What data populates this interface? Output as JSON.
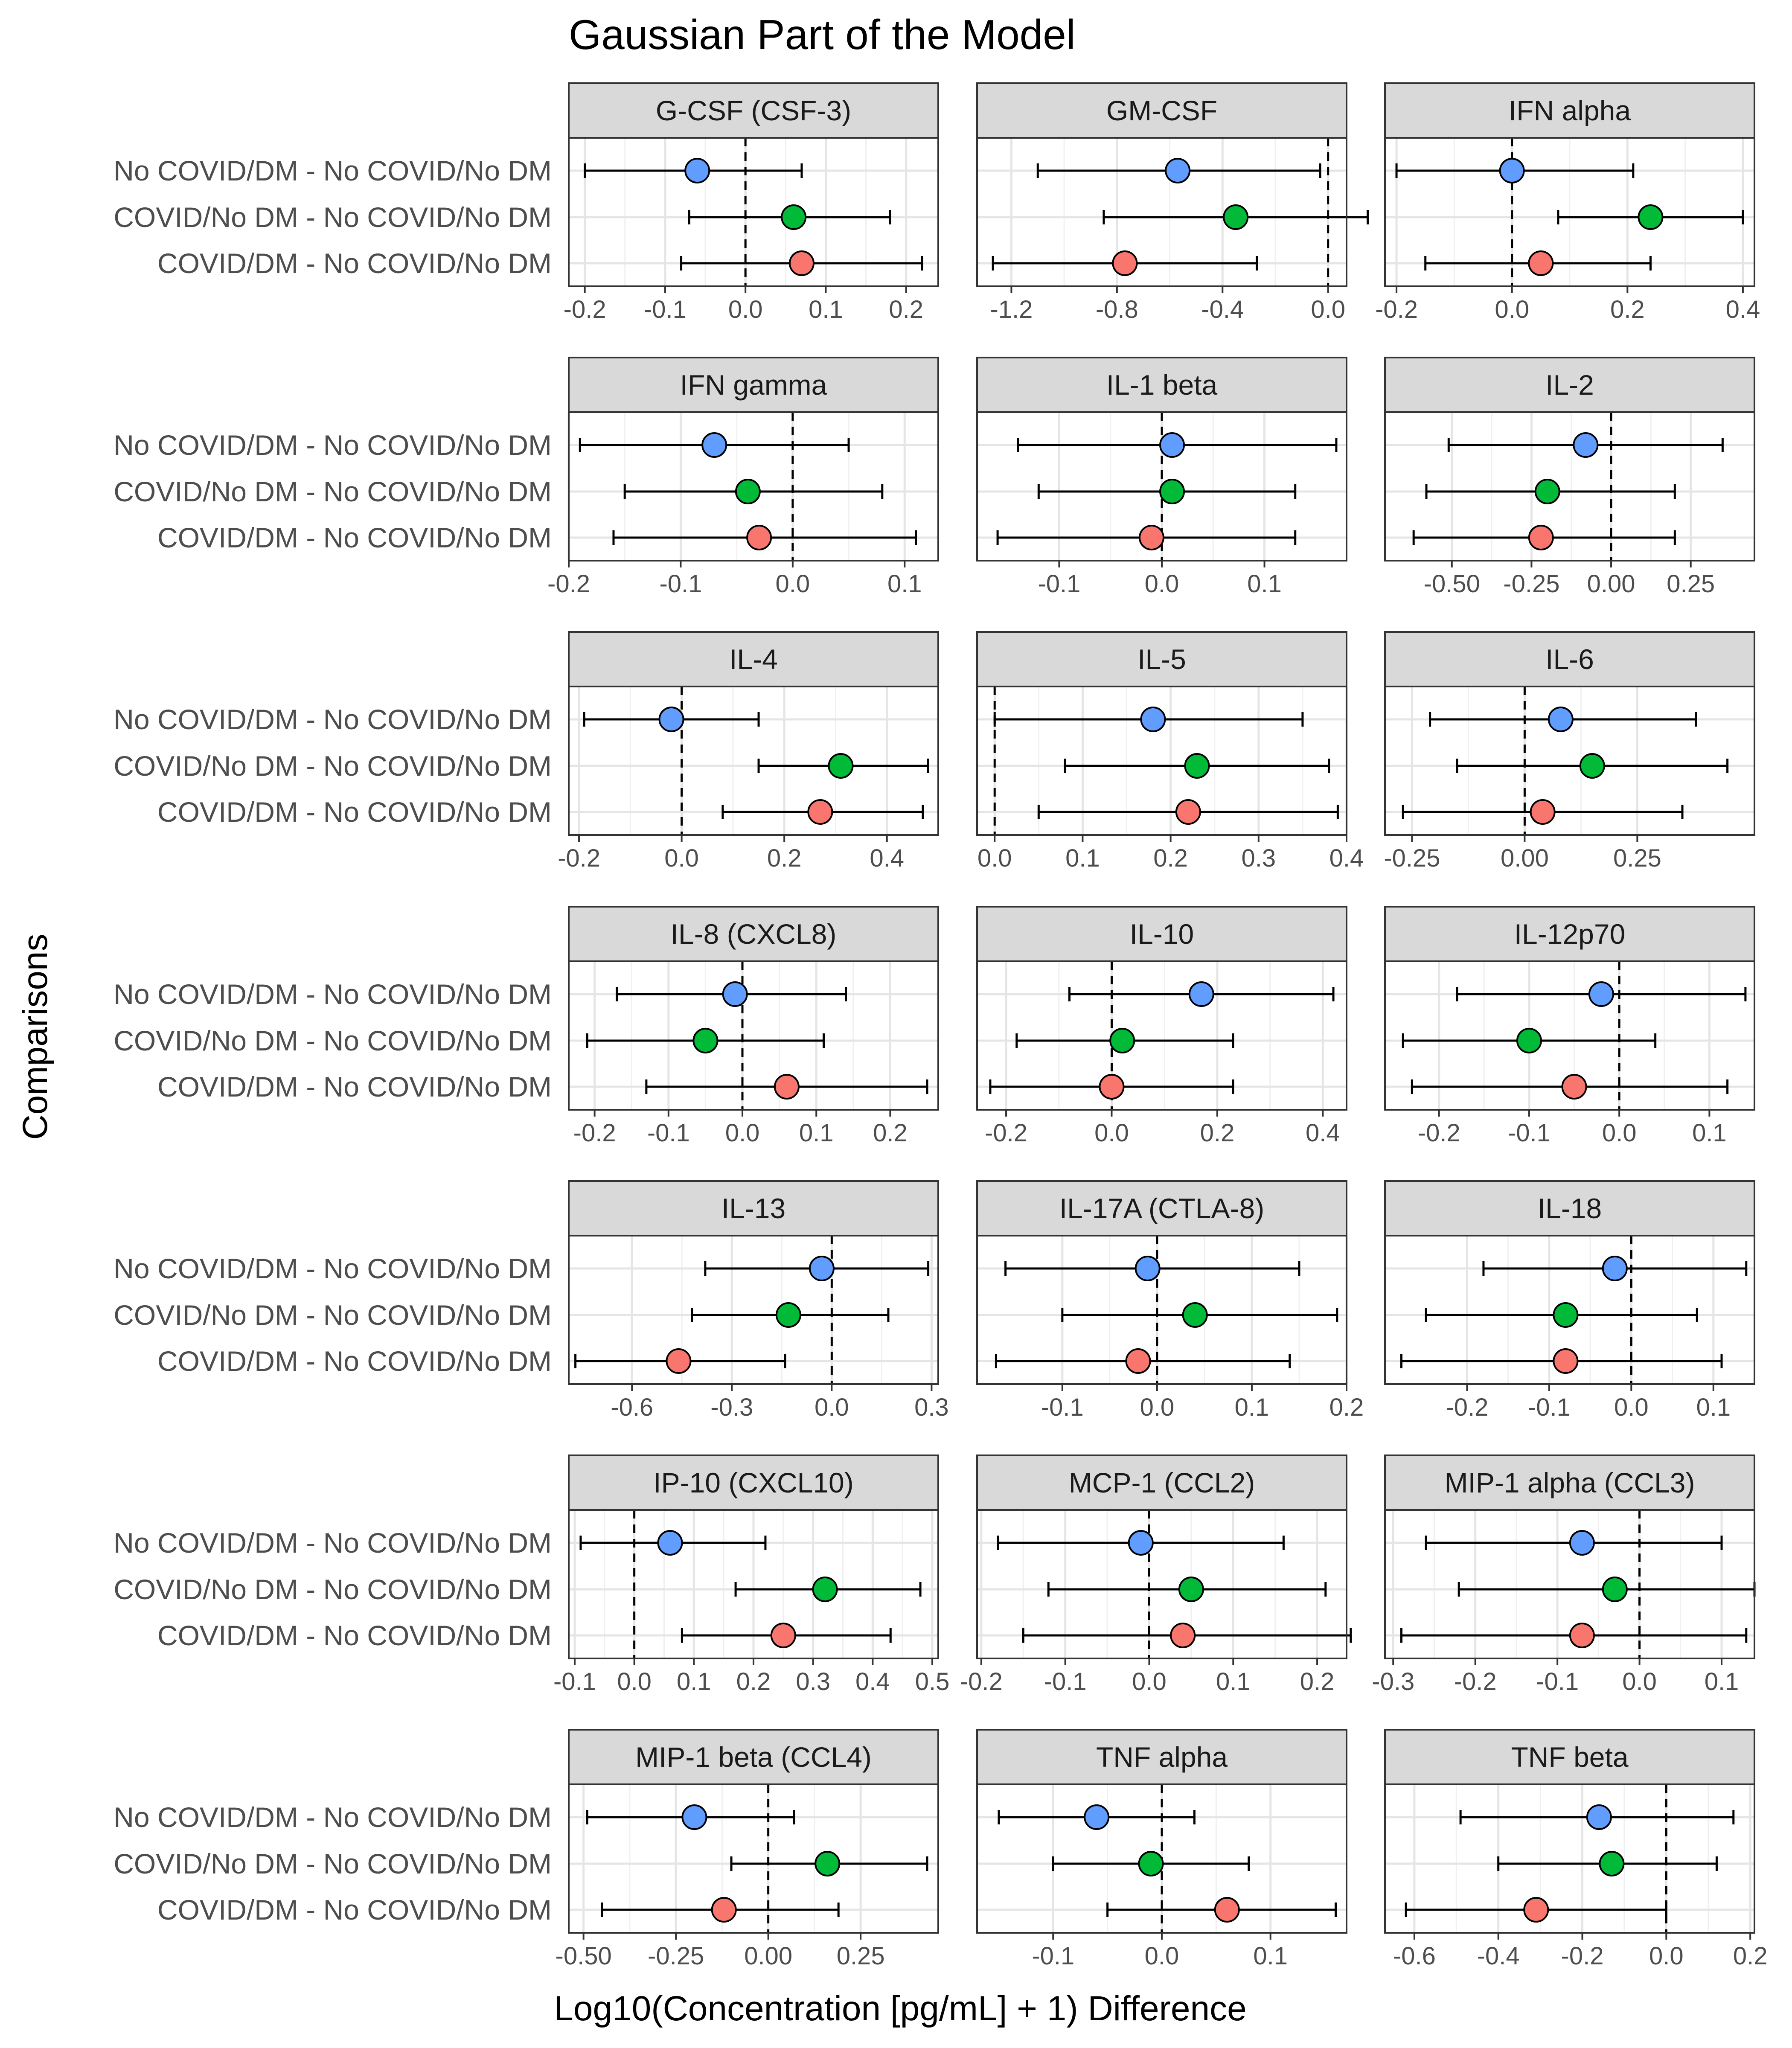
{
  "chart_data": {
    "type": "scatter",
    "subtype": "forest-plot-faceted",
    "title": "Gaussian Part of the Model",
    "xlabel": "Log10(Concentration [pg/mL] + 1) Difference",
    "ylabel": "Comparisons",
    "facet_grid": {
      "rows": 7,
      "cols": 3
    },
    "grid": true,
    "reference_line": {
      "x": 0,
      "style": "dashed"
    },
    "comparisons": [
      "No COVID/DM - No COVID/No DM",
      "COVID/No DM - No COVID/No DM",
      "COVID/DM - No COVID/No DM"
    ],
    "series_colors": [
      "#619CFF",
      "#00BA38",
      "#F8766D"
    ],
    "panels": [
      {
        "name": "G-CSF (CSF-3)",
        "xlim": [
          -0.22,
          0.24
        ],
        "ticks": [
          -0.2,
          -0.1,
          0.0,
          0.1,
          0.2
        ],
        "tick_labels": [
          "-0.2",
          "-0.1",
          "0.0",
          "0.1",
          "0.2"
        ],
        "estimates": [
          -0.06,
          0.06,
          0.07
        ],
        "lower": [
          -0.2,
          -0.07,
          -0.08
        ],
        "upper": [
          0.07,
          0.18,
          0.22
        ]
      },
      {
        "name": "GM-CSF",
        "xlim": [
          -1.33,
          0.07
        ],
        "ticks": [
          -1.2,
          -0.8,
          -0.4,
          0.0
        ],
        "tick_labels": [
          "-1.2",
          "-0.8",
          "-0.4",
          "0.0"
        ],
        "estimates": [
          -0.57,
          -0.35,
          -0.77
        ],
        "lower": [
          -1.1,
          -0.85,
          -1.27
        ],
        "upper": [
          -0.03,
          0.15,
          -0.27
        ]
      },
      {
        "name": "IFN alpha",
        "xlim": [
          -0.22,
          0.42
        ],
        "ticks": [
          -0.2,
          0.0,
          0.2,
          0.4
        ],
        "tick_labels": [
          "-0.2",
          "0.0",
          "0.2",
          "0.4"
        ],
        "estimates": [
          0.0,
          0.24,
          0.05
        ],
        "lower": [
          -0.2,
          0.08,
          -0.15
        ],
        "upper": [
          0.21,
          0.4,
          0.24
        ]
      },
      {
        "name": "IFN gamma",
        "xlim": [
          -0.2,
          0.13
        ],
        "ticks": [
          -0.2,
          -0.1,
          0.0,
          0.1
        ],
        "tick_labels": [
          "-0.2",
          "-0.1",
          "0.0",
          "0.1"
        ],
        "estimates": [
          -0.07,
          -0.04,
          -0.03
        ],
        "lower": [
          -0.19,
          -0.15,
          -0.16
        ],
        "upper": [
          0.05,
          0.08,
          0.11
        ]
      },
      {
        "name": "IL-1 beta",
        "xlim": [
          -0.18,
          0.18
        ],
        "ticks": [
          -0.1,
          0.0,
          0.1
        ],
        "tick_labels": [
          "-0.1",
          "0.0",
          "0.1"
        ],
        "estimates": [
          0.01,
          0.01,
          -0.01
        ],
        "lower": [
          -0.14,
          -0.12,
          -0.16
        ],
        "upper": [
          0.17,
          0.13,
          0.13
        ]
      },
      {
        "name": "IL-2",
        "xlim": [
          -0.71,
          0.45
        ],
        "ticks": [
          -0.5,
          -0.25,
          0.0,
          0.25
        ],
        "tick_labels": [
          "-0.50",
          "-0.25",
          "0.00",
          "0.25"
        ],
        "estimates": [
          -0.08,
          -0.2,
          -0.22
        ],
        "lower": [
          -0.51,
          -0.58,
          -0.62
        ],
        "upper": [
          0.35,
          0.2,
          0.2
        ]
      },
      {
        "name": "IL-4",
        "xlim": [
          -0.22,
          0.5
        ],
        "ticks": [
          -0.2,
          0.0,
          0.2,
          0.4
        ],
        "tick_labels": [
          "-0.2",
          "0.0",
          "0.2",
          "0.4"
        ],
        "estimates": [
          -0.02,
          0.31,
          0.27
        ],
        "lower": [
          -0.19,
          0.15,
          0.08
        ],
        "upper": [
          0.15,
          0.48,
          0.47
        ]
      },
      {
        "name": "IL-5",
        "xlim": [
          -0.02,
          0.4
        ],
        "ticks": [
          0.0,
          0.1,
          0.2,
          0.3,
          0.4
        ],
        "tick_labels": [
          "0.0",
          "0.1",
          "0.2",
          "0.3",
          "0.4"
        ],
        "estimates": [
          0.18,
          0.23,
          0.22
        ],
        "lower": [
          0.0,
          0.08,
          0.05
        ],
        "upper": [
          0.35,
          0.38,
          0.39
        ]
      },
      {
        "name": "IL-6",
        "xlim": [
          -0.31,
          0.51
        ],
        "ticks": [
          -0.25,
          0.0,
          0.25
        ],
        "tick_labels": [
          "-0.25",
          "0.00",
          "0.25"
        ],
        "estimates": [
          0.08,
          0.15,
          0.04
        ],
        "lower": [
          -0.21,
          -0.15,
          -0.27
        ],
        "upper": [
          0.38,
          0.45,
          0.35
        ]
      },
      {
        "name": "IL-8 (CXCL8)",
        "xlim": [
          -0.235,
          0.265
        ],
        "ticks": [
          -0.2,
          -0.1,
          0.0,
          0.1,
          0.2
        ],
        "tick_labels": [
          "-0.2",
          "-0.1",
          "0.0",
          "0.1",
          "0.2"
        ],
        "estimates": [
          -0.01,
          -0.05,
          0.06
        ],
        "lower": [
          -0.17,
          -0.21,
          -0.13
        ],
        "upper": [
          0.14,
          0.11,
          0.25
        ]
      },
      {
        "name": "IL-10",
        "xlim": [
          -0.255,
          0.445
        ],
        "ticks": [
          -0.2,
          0.0,
          0.2,
          0.4
        ],
        "tick_labels": [
          "-0.2",
          "0.0",
          "0.2",
          "0.4"
        ],
        "estimates": [
          0.17,
          0.02,
          0.0
        ],
        "lower": [
          -0.08,
          -0.18,
          -0.23
        ],
        "upper": [
          0.42,
          0.23,
          0.23
        ]
      },
      {
        "name": "IL-12p70",
        "xlim": [
          -0.26,
          0.15
        ],
        "ticks": [
          -0.2,
          -0.1,
          0.0,
          0.1
        ],
        "tick_labels": [
          "-0.2",
          "-0.1",
          "0.0",
          "0.1"
        ],
        "estimates": [
          -0.02,
          -0.1,
          -0.05
        ],
        "lower": [
          -0.18,
          -0.24,
          -0.23
        ],
        "upper": [
          0.14,
          0.04,
          0.12
        ]
      },
      {
        "name": "IL-13",
        "xlim": [
          -0.79,
          0.32
        ],
        "ticks": [
          -0.6,
          -0.3,
          0.0,
          0.3
        ],
        "tick_labels": [
          "-0.6",
          "-0.3",
          "0.0",
          "0.3"
        ],
        "estimates": [
          -0.03,
          -0.13,
          -0.46
        ],
        "lower": [
          -0.38,
          -0.42,
          -0.77
        ],
        "upper": [
          0.29,
          0.17,
          -0.14
        ]
      },
      {
        "name": "IL-17A (CTLA-8)",
        "xlim": [
          -0.19,
          0.2
        ],
        "ticks": [
          -0.1,
          0.0,
          0.1,
          0.2
        ],
        "tick_labels": [
          "-0.1",
          "0.0",
          "0.1",
          "0.2"
        ],
        "estimates": [
          -0.01,
          0.04,
          -0.02
        ],
        "lower": [
          -0.16,
          -0.1,
          -0.17
        ],
        "upper": [
          0.15,
          0.19,
          0.14
        ]
      },
      {
        "name": "IL-18",
        "xlim": [
          -0.3,
          0.15
        ],
        "ticks": [
          -0.2,
          -0.1,
          0.0,
          0.1
        ],
        "tick_labels": [
          "-0.2",
          "-0.1",
          "0.0",
          "0.1"
        ],
        "estimates": [
          -0.02,
          -0.08,
          -0.08
        ],
        "lower": [
          -0.18,
          -0.25,
          -0.28
        ],
        "upper": [
          0.14,
          0.08,
          0.11
        ]
      },
      {
        "name": "IP-10 (CXCL10)",
        "xlim": [
          -0.11,
          0.51
        ],
        "ticks": [
          -0.1,
          0.0,
          0.1,
          0.2,
          0.3,
          0.4,
          0.5
        ],
        "tick_labels": [
          "-0.1",
          "0.0",
          "0.1",
          "0.2",
          "0.3",
          "0.4",
          "0.5"
        ],
        "estimates": [
          0.06,
          0.32,
          0.25
        ],
        "lower": [
          -0.09,
          0.17,
          0.08
        ],
        "upper": [
          0.22,
          0.48,
          0.43
        ]
      },
      {
        "name": "MCP-1 (CCL2)",
        "xlim": [
          -0.205,
          0.235
        ],
        "ticks": [
          -0.2,
          -0.1,
          0.0,
          0.1,
          0.2
        ],
        "tick_labels": [
          "-0.2",
          "-0.1",
          "0.0",
          "0.1",
          "0.2"
        ],
        "estimates": [
          -0.01,
          0.05,
          0.04
        ],
        "lower": [
          -0.18,
          -0.12,
          -0.15
        ],
        "upper": [
          0.16,
          0.21,
          0.24
        ]
      },
      {
        "name": "MIP-1 alpha (CCL3)",
        "xlim": [
          -0.31,
          0.14
        ],
        "ticks": [
          -0.3,
          -0.2,
          -0.1,
          0.0,
          0.1
        ],
        "tick_labels": [
          "-0.3",
          "-0.2",
          "-0.1",
          "0.0",
          "0.1"
        ],
        "estimates": [
          -0.07,
          -0.03,
          -0.07
        ],
        "lower": [
          -0.26,
          -0.22,
          -0.29
        ],
        "upper": [
          0.1,
          0.14,
          0.13
        ]
      },
      {
        "name": "MIP-1 beta (CCL4)",
        "xlim": [
          -0.54,
          0.46
        ],
        "ticks": [
          -0.5,
          -0.25,
          0.0,
          0.25
        ],
        "tick_labels": [
          "-0.50",
          "-0.25",
          "0.00",
          "0.25"
        ],
        "estimates": [
          -0.2,
          0.16,
          -0.12
        ],
        "lower": [
          -0.49,
          -0.1,
          -0.45
        ],
        "upper": [
          0.07,
          0.43,
          0.19
        ]
      },
      {
        "name": "TNF alpha",
        "xlim": [
          -0.17,
          0.17
        ],
        "ticks": [
          -0.1,
          0.0,
          0.1
        ],
        "tick_labels": [
          "-0.1",
          "0.0",
          "0.1"
        ],
        "estimates": [
          -0.06,
          -0.01,
          0.06
        ],
        "lower": [
          -0.15,
          -0.1,
          -0.05
        ],
        "upper": [
          0.03,
          0.08,
          0.16
        ]
      },
      {
        "name": "TNF beta",
        "xlim": [
          -0.67,
          0.21
        ],
        "ticks": [
          -0.6,
          -0.4,
          -0.2,
          0.0,
          0.2
        ],
        "tick_labels": [
          "-0.6",
          "-0.4",
          "-0.2",
          "0.0",
          "0.2"
        ],
        "estimates": [
          -0.16,
          -0.13,
          -0.31
        ],
        "lower": [
          -0.49,
          -0.4,
          -0.62
        ],
        "upper": [
          0.16,
          0.12,
          0.0
        ]
      }
    ]
  }
}
